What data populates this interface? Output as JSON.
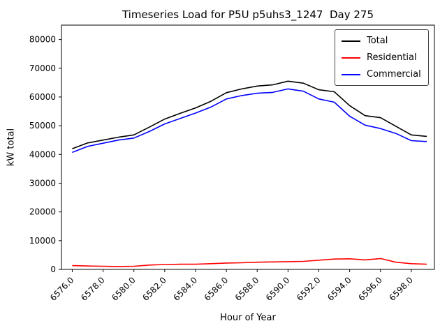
{
  "chart_data": {
    "type": "line",
    "title": "Timeseries Load for P5U p5uhs3_1247  Day 275",
    "xlabel": "Hour of Year",
    "ylabel": "kW total",
    "xlim": [
      6575.3,
      6599.5
    ],
    "ylim": [
      0,
      85000
    ],
    "grid": false,
    "legend_position": "upper right",
    "x": [
      6576,
      6577,
      6578,
      6579,
      6580,
      6581,
      6582,
      6583,
      6584,
      6585,
      6586,
      6587,
      6588,
      6589,
      6590,
      6591,
      6592,
      6593,
      6594,
      6595,
      6596,
      6597,
      6598,
      6599
    ],
    "xticks": [
      6576,
      6578,
      6580,
      6582,
      6584,
      6586,
      6588,
      6590,
      6592,
      6594,
      6596,
      6598
    ],
    "xtick_labels": [
      "6576.0",
      "6578.0",
      "6580.0",
      "6582.0",
      "6584.0",
      "6586.0",
      "6588.0",
      "6590.0",
      "6592.0",
      "6594.0",
      "6596.0",
      "6598.0"
    ],
    "yticks": [
      0,
      10000,
      20000,
      30000,
      40000,
      50000,
      60000,
      70000,
      80000
    ],
    "ytick_labels": [
      "0",
      "10000",
      "20000",
      "30000",
      "40000",
      "50000",
      "60000",
      "70000",
      "80000"
    ],
    "series": [
      {
        "name": "Total",
        "color": "#000000",
        "values": [
          42000,
          44000,
          45000,
          46000,
          46800,
          49500,
          52300,
          54300,
          56200,
          58500,
          61500,
          62800,
          63800,
          64200,
          65500,
          64800,
          62500,
          61800,
          57000,
          53500,
          52800,
          49800,
          46800,
          46300
        ]
      },
      {
        "name": "Residential",
        "color": "#ff0000",
        "values": [
          1300,
          1200,
          1100,
          1000,
          1100,
          1500,
          1700,
          1800,
          1800,
          2000,
          2200,
          2300,
          2500,
          2600,
          2700,
          2800,
          3200,
          3600,
          3700,
          3300,
          3800,
          2500,
          2000,
          1800
        ]
      },
      {
        "name": "Commercial",
        "color": "#0000ff",
        "values": [
          40700,
          42800,
          43900,
          45000,
          45700,
          48000,
          50600,
          52500,
          54400,
          56500,
          59300,
          60500,
          61300,
          61600,
          62800,
          62000,
          59300,
          58200,
          53300,
          50200,
          49000,
          47300,
          44800,
          44500
        ]
      }
    ]
  }
}
